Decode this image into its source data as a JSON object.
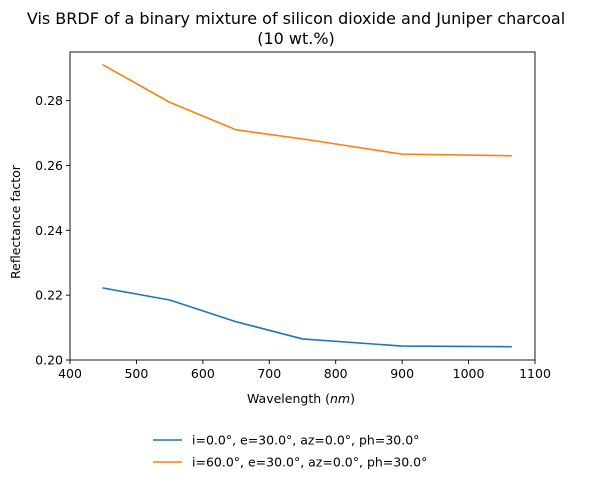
{
  "chart_data": {
    "type": "line",
    "title": "Vis BRDF of a binary mixture of silicon dioxide and Juniper charcoal",
    "subtitle": "(10 wt.%)",
    "xlabel": "Wavelength",
    "xlabel_unit": "nm",
    "ylabel": "Reflectance factor",
    "xlim": [
      400,
      1100
    ],
    "ylim": [
      0.2,
      0.295
    ],
    "xticks": [
      400,
      500,
      600,
      700,
      800,
      900,
      1000,
      1100
    ],
    "yticks": [
      0.2,
      0.22,
      0.24,
      0.26,
      0.28
    ],
    "ytick_labels": [
      "0.20",
      "0.22",
      "0.24",
      "0.26",
      "0.28"
    ],
    "grid": false,
    "legend_position": "bottom-center, below plot",
    "series": [
      {
        "name": "i=0.0°, e=30.0°, az=0.0°, ph=30.0°",
        "color": "#1f77b4",
        "x": [
          450,
          550,
          650,
          750,
          900,
          1064
        ],
        "y": [
          0.2222,
          0.2185,
          0.2118,
          0.2065,
          0.2043,
          0.2041
        ]
      },
      {
        "name": "i=60.0°, e=30.0°, az=0.0°, ph=30.0°",
        "color": "#ff7f0e",
        "x": [
          450,
          550,
          650,
          750,
          900,
          1064
        ],
        "y": [
          0.291,
          0.2795,
          0.271,
          0.2682,
          0.2635,
          0.263
        ]
      }
    ]
  }
}
